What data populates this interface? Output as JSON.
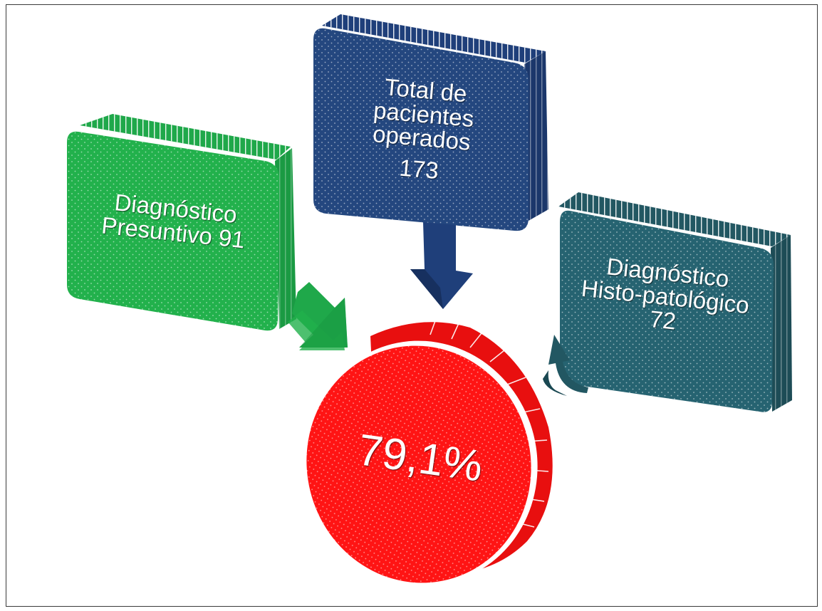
{
  "nodes": {
    "presuntivo": {
      "line1": "Diagnóstico",
      "line2": "Presuntivo 91",
      "color": "#1fa84a"
    },
    "total": {
      "line1": "Total de",
      "line2": "pacientes",
      "line3": "operados",
      "value": "173",
      "color": "#1f3f7a"
    },
    "histo": {
      "line1": "Diagnóstico",
      "line2": "Histo-patológico",
      "line3": "72",
      "color": "#225762"
    },
    "result": {
      "value": "79,1%",
      "color": "#ff1212"
    }
  }
}
